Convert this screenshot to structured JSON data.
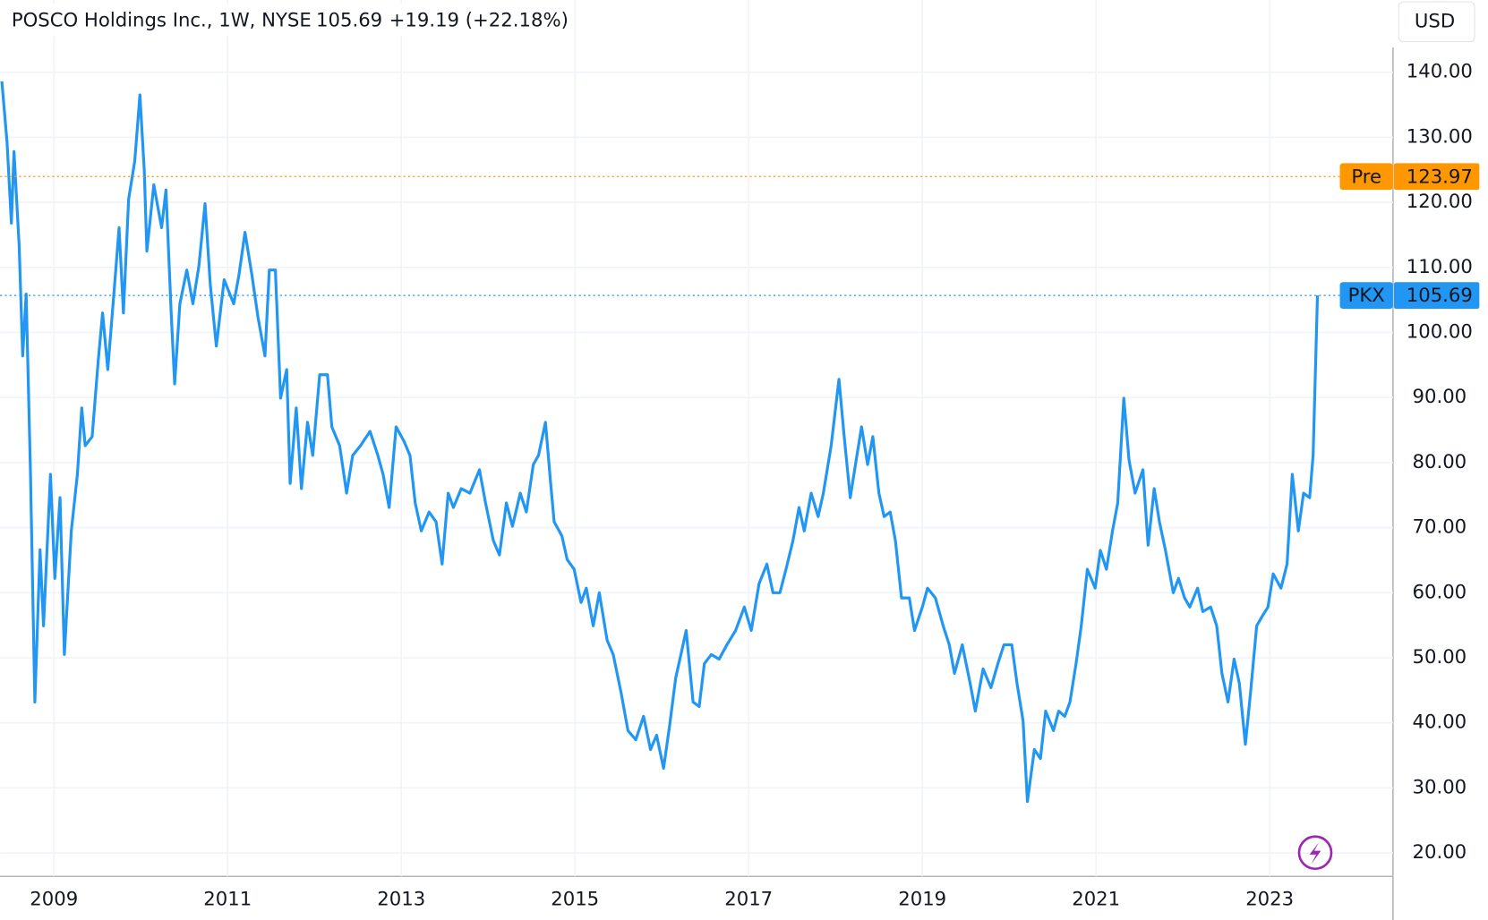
{
  "chart_data": {
    "type": "line",
    "title": "POSCO Holdings Inc., 1W, NYSE",
    "last_value": 105.69,
    "change": "+19.19 (+22.18%)",
    "currency": "USD",
    "premarket": {
      "label": "Pre",
      "value": 123.97,
      "color": "#ff9800"
    },
    "x": [
      2008.4,
      2008.46,
      2008.51,
      2008.54,
      2008.6,
      2008.64,
      2008.68,
      2008.73,
      2008.78,
      2008.84,
      2008.88,
      2008.96,
      2009.01,
      2009.07,
      2009.12,
      2009.2,
      2009.27,
      2009.32,
      2009.36,
      2009.44,
      2009.51,
      2009.56,
      2009.62,
      2009.69,
      2009.75,
      2009.8,
      2009.86,
      2009.93,
      2009.99,
      2010.04,
      2010.07,
      2010.15,
      2010.24,
      2010.29,
      2010.35,
      2010.39,
      2010.45,
      2010.53,
      2010.6,
      2010.67,
      2010.74,
      2010.8,
      2010.87,
      2010.96,
      2011.07,
      2011.13,
      2011.2,
      2011.28,
      2011.35,
      2011.43,
      2011.48,
      2011.55,
      2011.61,
      2011.68,
      2011.72,
      2011.79,
      2011.85,
      2011.92,
      2011.98,
      2012.06,
      2012.15,
      2012.2,
      2012.29,
      2012.37,
      2012.44,
      2012.53,
      2012.64,
      2012.73,
      2012.79,
      2012.86,
      2012.94,
      2013.03,
      2013.1,
      2013.16,
      2013.23,
      2013.32,
      2013.4,
      2013.47,
      2013.54,
      2013.6,
      2013.69,
      2013.79,
      2013.9,
      2013.97,
      2014.06,
      2014.13,
      2014.21,
      2014.28,
      2014.37,
      2014.44,
      2014.52,
      2014.58,
      2014.66,
      2014.72,
      2014.76,
      2014.85,
      2014.91,
      2014.99,
      2015.07,
      2015.13,
      2015.21,
      2015.28,
      2015.37,
      2015.44,
      2015.53,
      2015.61,
      2015.7,
      2015.79,
      2015.87,
      2015.94,
      2016.02,
      2016.09,
      2016.16,
      2016.22,
      2016.28,
      2016.36,
      2016.43,
      2016.49,
      2016.57,
      2016.66,
      2016.75,
      2016.85,
      2016.95,
      2017.03,
      2017.12,
      2017.21,
      2017.28,
      2017.36,
      2017.43,
      2017.51,
      2017.58,
      2017.64,
      2017.72,
      2017.8,
      2017.86,
      2017.95,
      2018.04,
      2018.1,
      2018.17,
      2018.23,
      2018.3,
      2018.37,
      2018.43,
      2018.5,
      2018.56,
      2018.63,
      2018.69,
      2018.76,
      2018.85,
      2018.91,
      2019.0,
      2019.06,
      2019.15,
      2019.24,
      2019.31,
      2019.37,
      2019.46,
      2019.55,
      2019.61,
      2019.7,
      2019.79,
      2019.87,
      2019.94,
      2020.03,
      2020.09,
      2020.16,
      2020.21,
      2020.29,
      2020.36,
      2020.42,
      2020.51,
      2020.57,
      2020.64,
      2020.7,
      2020.77,
      2020.83,
      2020.9,
      2020.99,
      2021.05,
      2021.12,
      2021.19,
      2021.25,
      2021.32,
      2021.38,
      2021.45,
      2021.54,
      2021.6,
      2021.67,
      2021.73,
      2021.8,
      2021.89,
      2021.95,
      2022.02,
      2022.08,
      2022.17,
      2022.23,
      2022.32,
      2022.39,
      2022.45,
      2022.52,
      2022.59,
      2022.65,
      2022.72,
      2022.78,
      2022.85,
      2022.91,
      2022.98,
      2023.04,
      2023.13,
      2023.2,
      2023.26,
      2023.33,
      2023.39,
      2023.46,
      2023.5,
      2023.55
    ],
    "series": [
      {
        "name": "PKX",
        "color": "#2196f3",
        "values": [
          138.6,
          129.2,
          116.8,
          127.8,
          113.2,
          96.4,
          105.9,
          78.2,
          43.2,
          66.6,
          54.9,
          78.2,
          62.2,
          74.6,
          50.5,
          69.5,
          78.2,
          88.4,
          82.6,
          84.0,
          95.7,
          103.0,
          94.3,
          105.9,
          116.1,
          103.0,
          120.5,
          126.3,
          136.5,
          124.9,
          112.5,
          122.7,
          116.1,
          121.9,
          103.0,
          92.1,
          104.4,
          109.6,
          104.4,
          110.3,
          119.8,
          107.4,
          97.9,
          108.1,
          104.4,
          108.8,
          115.4,
          108.8,
          102.3,
          96.4,
          109.6,
          109.6,
          89.9,
          94.3,
          76.8,
          88.4,
          76.0,
          86.2,
          81.1,
          93.5,
          93.5,
          85.5,
          82.6,
          75.3,
          81.1,
          82.6,
          84.8,
          81.1,
          78.2,
          73.1,
          85.5,
          83.3,
          81.1,
          73.8,
          69.5,
          72.4,
          70.9,
          64.4,
          75.3,
          73.1,
          76.0,
          75.3,
          78.9,
          73.8,
          68.0,
          65.8,
          73.8,
          70.2,
          75.3,
          72.4,
          79.7,
          81.1,
          86.2,
          76.8,
          70.9,
          68.7,
          65.1,
          63.6,
          58.5,
          60.7,
          54.9,
          60.0,
          52.7,
          50.5,
          44.7,
          38.8,
          37.4,
          41.0,
          35.9,
          38.1,
          33.0,
          39.6,
          46.9,
          50.5,
          54.2,
          43.2,
          42.5,
          49.1,
          50.5,
          49.8,
          52.0,
          54.2,
          57.8,
          54.2,
          61.4,
          64.4,
          60.0,
          60.0,
          63.6,
          68.0,
          73.1,
          69.5,
          75.3,
          71.7,
          75.3,
          82.6,
          92.8,
          84.0,
          74.6,
          79.7,
          85.5,
          79.7,
          84.0,
          75.3,
          71.7,
          72.4,
          68.0,
          59.2,
          59.2,
          54.2,
          57.8,
          60.7,
          59.2,
          54.9,
          52.0,
          47.6,
          52.0,
          46.1,
          41.8,
          48.3,
          45.4,
          49.1,
          52.0,
          52.0,
          46.1,
          40.3,
          27.9,
          35.9,
          34.5,
          41.8,
          38.8,
          41.8,
          41.0,
          43.2,
          49.1,
          54.9,
          63.6,
          60.7,
          66.5,
          63.6,
          69.5,
          73.8,
          89.9,
          80.4,
          75.3,
          78.9,
          67.3,
          76.0,
          70.9,
          66.5,
          60.0,
          62.2,
          59.2,
          57.8,
          60.7,
          57.1,
          57.8,
          54.9,
          47.6,
          43.2,
          49.8,
          46.1,
          36.7,
          44.7,
          54.9,
          56.3,
          57.8,
          62.9,
          60.7,
          64.4,
          78.2,
          69.5,
          75.3,
          74.6,
          81.1,
          105.69
        ]
      }
    ],
    "xlim": [
      2008.38,
      2024.42
    ],
    "xticks": [
      2009,
      2011,
      2013,
      2015,
      2017,
      2019,
      2021,
      2023
    ],
    "ylim": [
      16.4,
      151.1
    ],
    "yticks": [
      {
        "value": 20,
        "label": "20.00"
      },
      {
        "value": 30,
        "label": "30.00"
      },
      {
        "value": 40,
        "label": "40.00"
      },
      {
        "value": 50,
        "label": "50.00"
      },
      {
        "value": 60,
        "label": "60.00"
      },
      {
        "value": 70,
        "label": "70.00"
      },
      {
        "value": 80,
        "label": "80.00"
      },
      {
        "value": 90,
        "label": "90.00"
      },
      {
        "value": 100,
        "label": "100.00"
      },
      {
        "value": 110,
        "label": "110.00"
      },
      {
        "value": 120,
        "label": "120.00"
      },
      {
        "value": 130,
        "label": "130.00"
      },
      {
        "value": 140,
        "label": "140.00"
      }
    ],
    "grid": true
  }
}
